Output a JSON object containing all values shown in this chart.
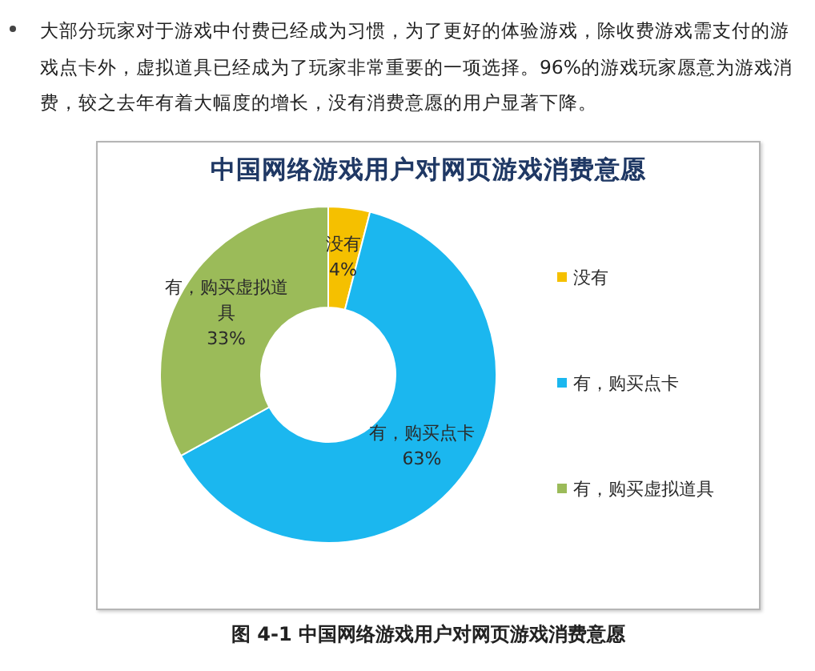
{
  "chart_data": {
    "type": "donut",
    "title": "中国网络游戏用户对网页游戏消费意愿",
    "categories": [
      "没有",
      "有，购买点卡",
      "有，购买虚拟道具"
    ],
    "values": [
      4,
      63,
      33
    ],
    "colors": [
      "#f5c000",
      "#1bb7ef",
      "#9bbb59"
    ],
    "value_labels": [
      "4%",
      "63%",
      "33%"
    ],
    "legend": "right",
    "annotations": [
      "大部分玩家对于游戏中付费已经成为习惯，为了更好的体验游戏，除收费游戏需支付的游戏点卡外，虚拟道具已经成为了玩家非常重要的一项选择。96%的游戏玩家愿意为游戏消费，较之去年有着大幅度的增长，没有消费意愿的用户显著下降。",
      "图 4-1 中国网络游戏用户对网页游戏消费意愿"
    ]
  }
}
